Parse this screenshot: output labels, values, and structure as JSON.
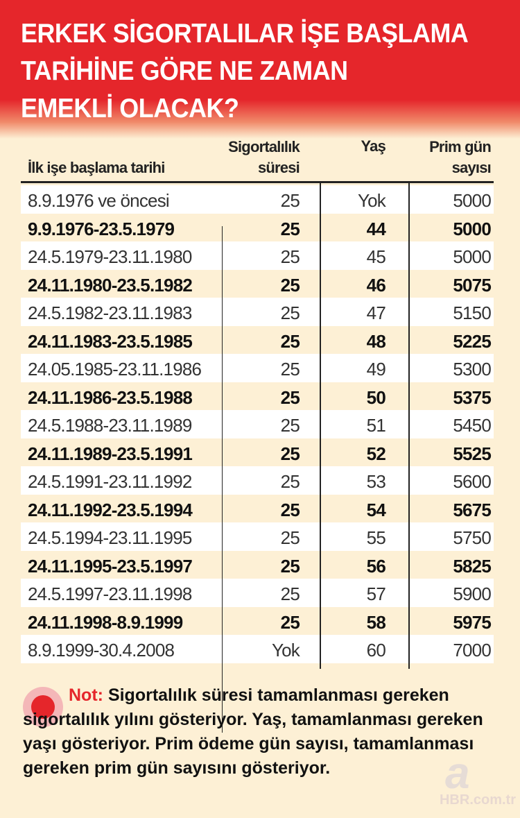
{
  "title_lines": [
    "ERKEK SİGORTALILAR İŞE BAŞLAMA",
    "TARİHİNE GÖRE NE ZAMAN",
    "EMEKLİ OLACAK?"
  ],
  "headers": {
    "start_date": "İlk işe başlama tarihi",
    "insurance_line1": "Sigortalılık",
    "insurance_line2": "süresi",
    "age": "Yaş",
    "prim_line1": "Prim gün",
    "prim_line2": "sayısı"
  },
  "rows": [
    [
      "8.9.1976 ve öncesi",
      "25",
      "Yok",
      "5000"
    ],
    [
      "9.9.1976-23.5.1979",
      "25",
      "44",
      "5000"
    ],
    [
      "24.5.1979-23.11.1980",
      "25",
      "45",
      "5000"
    ],
    [
      "24.11.1980-23.5.1982",
      "25",
      "46",
      "5075"
    ],
    [
      "24.5.1982-23.11.1983",
      "25",
      "47",
      "5150"
    ],
    [
      "24.11.1983-23.5.1985",
      "25",
      "48",
      "5225"
    ],
    [
      "24.05.1985-23.11.1986",
      "25",
      "49",
      "5300"
    ],
    [
      "24.11.1986-23.5.1988",
      "25",
      "50",
      "5375"
    ],
    [
      "24.5.1988-23.11.1989",
      "25",
      "51",
      "5450"
    ],
    [
      "24.11.1989-23.5.1991",
      "25",
      "52",
      "5525"
    ],
    [
      "24.5.1991-23.11.1992",
      "25",
      "53",
      "5600"
    ],
    [
      "24.11.1992-23.5.1994",
      "25",
      "54",
      "5675"
    ],
    [
      "24.5.1994-23.11.1995",
      "25",
      "55",
      "5750"
    ],
    [
      "24.11.1995-23.5.1997",
      "25",
      "56",
      "5825"
    ],
    [
      "24.5.1997-23.11.1998",
      "25",
      "57",
      "5900"
    ],
    [
      "24.11.1998-8.9.1999",
      "25",
      "58",
      "5975"
    ],
    [
      "8.9.1999-30.4.2008",
      "Yok",
      "60",
      "7000"
    ]
  ],
  "note": {
    "label": "Not:",
    "text": "Sigortalılık süresi tamamlanması gereken sigortalılık yılını gösteriyor. Yaş, tamamlanması gereken yaşı gösteriyor. Prim ödeme gün sayısı, tamamlanması gereken prim gün sayısını gösteriyor."
  },
  "watermark": {
    "letter": "a",
    "text": "HBR.com.tr"
  },
  "colors": {
    "accent": "#e5262b",
    "background": "#fdf0d5"
  }
}
